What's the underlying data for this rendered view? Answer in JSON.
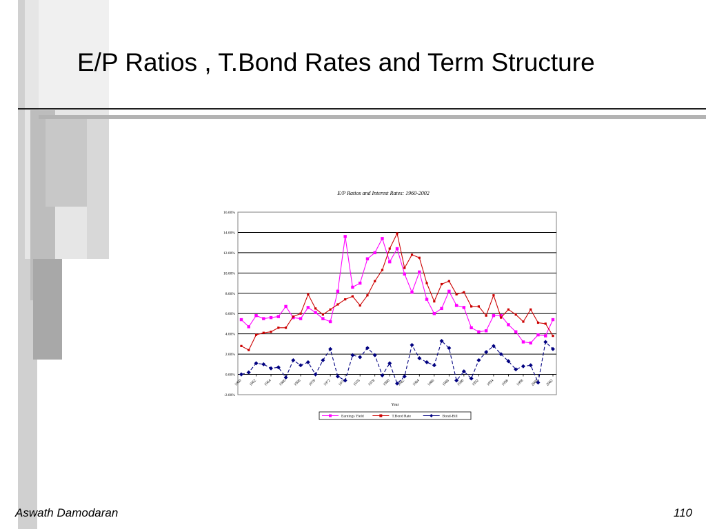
{
  "slide": {
    "title": "E/P Ratios , T.Bond Rates and Term Structure",
    "footer_left": "Aswath Damodaran",
    "footer_right": "110"
  },
  "chart_data": {
    "type": "line",
    "title": "E/P Ratios and Interest Rates: 1960-2002",
    "xlabel": "Year",
    "ylabel": "",
    "ylim": [
      -2,
      16
    ],
    "yticks": [
      "-2.00%",
      "0.00%",
      "2.00%",
      "4.00%",
      "6.00%",
      "8.00%",
      "10.00%",
      "12.00%",
      "14.00%",
      "16.00%"
    ],
    "x": [
      1960,
      1961,
      1962,
      1963,
      1964,
      1965,
      1966,
      1967,
      1968,
      1969,
      1970,
      1971,
      1972,
      1973,
      1974,
      1975,
      1976,
      1977,
      1978,
      1979,
      1980,
      1981,
      1982,
      1983,
      1984,
      1985,
      1986,
      1987,
      1988,
      1989,
      1990,
      1991,
      1992,
      1993,
      1994,
      1995,
      1996,
      1997,
      1998,
      1999,
      2000,
      2001,
      2002
    ],
    "xtick_labels": [
      "1960",
      "1962",
      "1964",
      "1966",
      "1968",
      "1970",
      "1972",
      "1974",
      "1976",
      "1978",
      "1980",
      "1982",
      "1984",
      "1986",
      "1988",
      "1990",
      "1992",
      "1994",
      "1996",
      "1998",
      "2000",
      "2002"
    ],
    "legend_position": "bottom",
    "grid": true,
    "series": [
      {
        "name": "Earnings Yield",
        "color": "#ff00ff",
        "marker": "square",
        "values": [
          5.4,
          4.7,
          5.8,
          5.5,
          5.6,
          5.7,
          6.7,
          5.6,
          5.5,
          6.6,
          6.1,
          5.5,
          5.2,
          8.2,
          13.6,
          8.6,
          9.0,
          11.4,
          12.0,
          13.4,
          11.1,
          12.4,
          9.9,
          8.1,
          10.1,
          7.4,
          6.0,
          6.5,
          8.2,
          6.8,
          6.6,
          4.6,
          4.2,
          4.3,
          5.8,
          5.8,
          4.9,
          4.2,
          3.2,
          3.1,
          3.9,
          3.8,
          5.4
        ]
      },
      {
        "name": "T.Bond Rate",
        "color": "#cc0000",
        "marker": "square-small",
        "values": [
          2.8,
          2.4,
          3.9,
          4.1,
          4.2,
          4.6,
          4.6,
          5.7,
          6.0,
          7.9,
          6.5,
          5.9,
          6.4,
          6.9,
          7.4,
          7.7,
          6.8,
          7.8,
          9.2,
          10.3,
          12.4,
          13.9,
          10.5,
          11.8,
          11.5,
          9.0,
          7.2,
          8.9,
          9.2,
          7.9,
          8.1,
          6.7,
          6.7,
          5.8,
          7.8,
          5.6,
          6.4,
          5.9,
          5.2,
          6.4,
          5.1,
          5.0,
          3.8
        ]
      },
      {
        "name": "Bond-Bill",
        "color": "#000080",
        "marker": "diamond",
        "values": [
          0.0,
          0.2,
          1.1,
          1.0,
          0.6,
          0.7,
          -0.3,
          1.4,
          0.9,
          1.2,
          0.0,
          1.4,
          2.5,
          -0.2,
          -0.6,
          1.9,
          1.7,
          2.6,
          1.9,
          -0.1,
          1.1,
          -0.9,
          -0.2,
          2.9,
          1.6,
          1.2,
          0.9,
          3.3,
          2.6,
          -0.6,
          0.3,
          -0.4,
          1.4,
          2.2,
          2.8,
          2.0,
          1.3,
          0.5,
          0.8,
          0.9,
          -0.8,
          3.2,
          2.5
        ]
      }
    ]
  }
}
